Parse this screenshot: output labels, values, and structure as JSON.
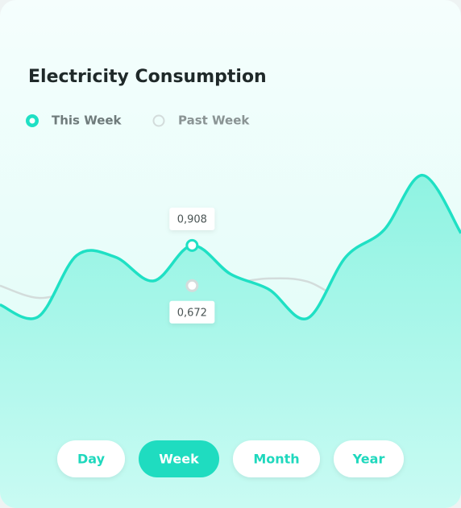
{
  "chart_data": {
    "type": "line",
    "title": "Electricity Consumption",
    "ylim": [
      0,
      1.5
    ],
    "series": [
      {
        "name": "This Week",
        "color": "#1fe0c4",
        "values": [
          0.56,
          0.49,
          0.85,
          0.84,
          0.7,
          0.908,
          0.74,
          0.65,
          0.48,
          0.84,
          1.0,
          1.32,
          0.98
        ],
        "value_labels": [
          null,
          null,
          null,
          null,
          null,
          "0,908",
          null,
          null,
          null,
          null,
          null,
          null,
          null
        ]
      },
      {
        "name": "Past Week",
        "color": "#d3dcdb",
        "values": [
          0.672,
          0.6,
          0.648,
          0.696,
          0.686,
          0.672,
          0.686,
          0.714,
          0.696,
          0.578,
          0.507,
          0.6,
          0.79
        ],
        "value_labels": [
          null,
          null,
          null,
          null,
          null,
          "0,672",
          null,
          null,
          null,
          null,
          null,
          null,
          null
        ]
      }
    ]
  },
  "tabs": {
    "items": [
      "Day",
      "Week",
      "Month",
      "Year"
    ],
    "active": 1
  }
}
